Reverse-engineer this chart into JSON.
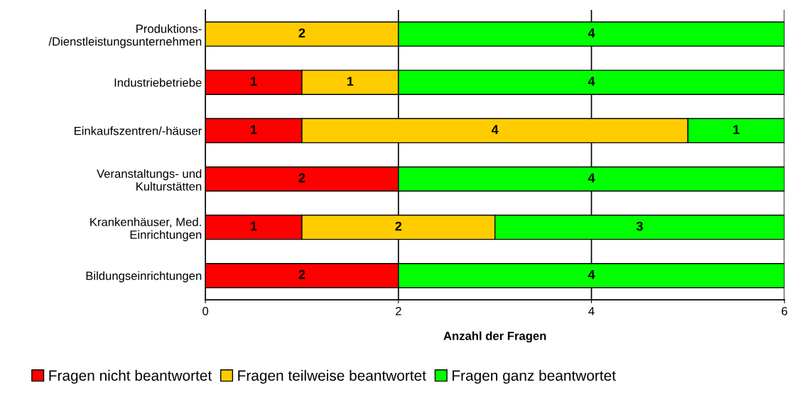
{
  "chart_data": {
    "type": "bar",
    "orientation": "horizontal",
    "stacked": true,
    "xlabel": "Anzahl der Fragen",
    "categories": [
      "Produktions-\n/Dienstleistungsunternehmen",
      "Industriebetriebe",
      "Einkaufszentren/-häuser",
      "Veranstaltungs- und\nKulturstätten",
      "Krankenhäuser, Med.\nEinrichtungen",
      "Bildungseinrichtungen"
    ],
    "series": [
      {
        "name": "Fragen nicht beantwortet",
        "color": "#ff0000",
        "values": [
          0,
          1,
          1,
          2,
          1,
          2
        ],
        "value_labels": [
          null,
          "1",
          "1",
          "2",
          "1",
          "2"
        ]
      },
      {
        "name": "Fragen teilweise beantwortet",
        "color": "#ffcc00",
        "values": [
          2,
          1,
          4,
          0,
          2,
          0
        ],
        "value_labels": [
          "2",
          "1",
          "4",
          null,
          "2",
          null
        ]
      },
      {
        "name": "Fragen ganz beantwortet",
        "color": "#00ff00",
        "values": [
          4,
          4,
          1,
          4,
          3,
          4
        ],
        "value_labels": [
          "4",
          "4",
          "1",
          "4",
          "3",
          "4"
        ]
      }
    ],
    "xlim": [
      0,
      6
    ],
    "xticks": [
      0,
      2,
      4,
      6
    ],
    "grid": "x",
    "legend": "bottom"
  }
}
